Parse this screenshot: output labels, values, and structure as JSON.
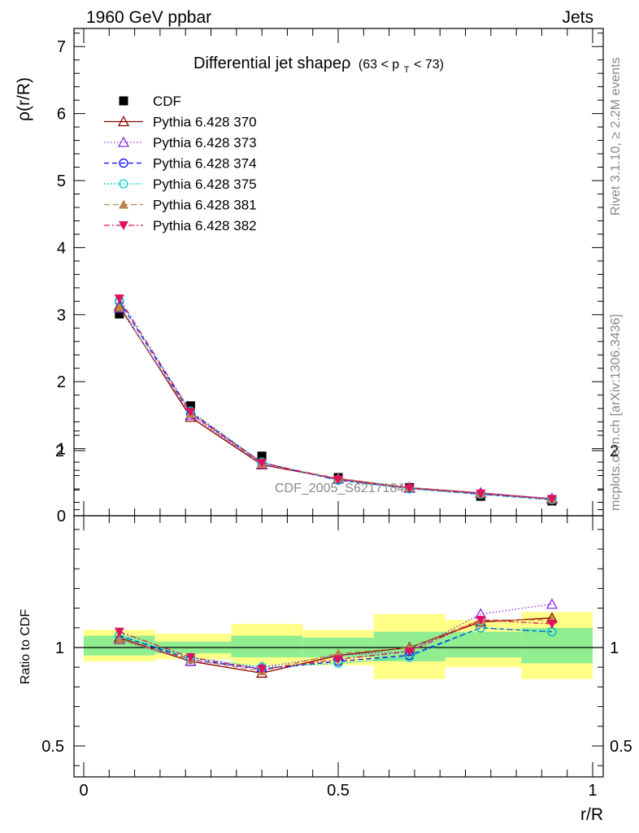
{
  "header": {
    "left": "1960 GeV ppbar",
    "right": "Jets"
  },
  "side_labels": {
    "rivet": "Rivet 3.1.10, ≥ 2.2M events",
    "mcplots": "mcplots.cern.ch [arXiv:1306.3436]"
  },
  "watermark": "CDF_2005_S6217184",
  "colors": {
    "CDF": "#000000",
    "370": "#8b0000",
    "373": "#8a2be2",
    "374": "#0000ff",
    "375": "#00cdcd",
    "381": "#b8864b",
    "382": "#e0115f",
    "band_stat": "#90ee90",
    "band_total": "#ffff88"
  },
  "chart_data": [
    {
      "type": "line",
      "title": "Differential jet shapeρ (63 < p_T < 73)",
      "title_main": "Differential jet shapeρ",
      "title_range_a": "(63 < p",
      "title_range_sub": "T",
      "title_range_b": " < 73)",
      "ylabel": "ρ(r/R)",
      "xlim": [
        0,
        1
      ],
      "ylim": [
        0,
        7.25
      ],
      "yticks": [
        "0",
        "1",
        "2",
        "3",
        "4",
        "5",
        "6",
        "7"
      ],
      "legend_position": "top-left",
      "x": [
        0.07,
        0.21,
        0.35,
        0.5,
        0.64,
        0.78,
        0.92
      ],
      "series": [
        {
          "name": "CDF",
          "key": "CDF",
          "marker": "square",
          "dash": "",
          "values": [
            3.01,
            1.64,
            0.89,
            0.57,
            0.42,
            0.29,
            0.22
          ]
        },
        {
          "name": "Pythia 6.428 370",
          "key": "370",
          "marker": "triangle-open",
          "dash": "",
          "values": [
            3.13,
            1.47,
            0.76,
            0.55,
            0.42,
            0.34,
            0.25
          ]
        },
        {
          "name": "Pythia 6.428 373",
          "key": "373",
          "marker": "triangle-open",
          "dash": "1.5,2.5",
          "values": [
            3.1,
            1.5,
            0.77,
            0.55,
            0.41,
            0.34,
            0.26
          ]
        },
        {
          "name": "Pythia 6.428 374",
          "key": "374",
          "marker": "circle-open",
          "dash": "6,4",
          "values": [
            3.2,
            1.53,
            0.79,
            0.53,
            0.41,
            0.32,
            0.24
          ]
        },
        {
          "name": "Pythia 6.428 375",
          "key": "375",
          "marker": "circle-open",
          "dash": "2,2",
          "values": [
            3.21,
            1.56,
            0.8,
            0.53,
            0.4,
            0.32,
            0.24
          ]
        },
        {
          "name": "Pythia 6.428 381",
          "key": "381",
          "marker": "triangle-filled",
          "dash": "7,4",
          "values": [
            3.11,
            1.52,
            0.77,
            0.56,
            0.42,
            0.33,
            0.25
          ]
        },
        {
          "name": "Pythia 6.428 382",
          "key": "382",
          "marker": "triangle-down-filled",
          "dash": "7,3,2,3",
          "values": [
            3.24,
            1.55,
            0.79,
            0.54,
            0.41,
            0.33,
            0.25
          ]
        }
      ]
    },
    {
      "type": "line",
      "ylabel": "Ratio to CDF",
      "xlabel": "r/R",
      "xlim": [
        0,
        1
      ],
      "ylim": [
        0.35,
        2.3
      ],
      "yticks": [
        {
          "value": 0.5,
          "label": "0.5"
        },
        {
          "value": 1,
          "label": "1"
        },
        {
          "value": 2,
          "label": "2"
        }
      ],
      "xticks": [
        {
          "value": 0,
          "label": "0"
        },
        {
          "value": 0.5,
          "label": "0.5"
        },
        {
          "value": 1,
          "label": "1"
        }
      ],
      "bands": [
        {
          "x0": 0.0,
          "x1": 0.14,
          "stat": [
            0.96,
            1.06
          ],
          "total": [
            0.93,
            1.09
          ]
        },
        {
          "x0": 0.14,
          "x1": 0.29,
          "stat": [
            0.97,
            1.03
          ],
          "total": [
            0.94,
            1.07
          ]
        },
        {
          "x0": 0.29,
          "x1": 0.43,
          "stat": [
            0.95,
            1.06
          ],
          "total": [
            0.91,
            1.12
          ]
        },
        {
          "x0": 0.43,
          "x1": 0.57,
          "stat": [
            0.95,
            1.05
          ],
          "total": [
            0.91,
            1.09
          ]
        },
        {
          "x0": 0.57,
          "x1": 0.71,
          "stat": [
            0.93,
            1.08
          ],
          "total": [
            0.84,
            1.17
          ]
        },
        {
          "x0": 0.71,
          "x1": 0.86,
          "stat": [
            0.95,
            1.08
          ],
          "total": [
            0.9,
            1.14
          ]
        },
        {
          "x0": 0.86,
          "x1": 1.0,
          "stat": [
            0.92,
            1.1
          ],
          "total": [
            0.84,
            1.18
          ]
        }
      ],
      "x": [
        0.07,
        0.21,
        0.35,
        0.5,
        0.64,
        0.78,
        0.92
      ],
      "series": [
        {
          "name": "Pythia 6.428 370",
          "key": "370",
          "marker": "triangle-open",
          "dash": "",
          "values": [
            1.05,
            0.93,
            0.87,
            0.96,
            1.0,
            1.13,
            1.15
          ]
        },
        {
          "name": "Pythia 6.428 373",
          "key": "373",
          "marker": "triangle-open",
          "dash": "1.5,2.5",
          "values": [
            1.04,
            0.93,
            0.9,
            0.96,
            0.98,
            1.17,
            1.22
          ]
        },
        {
          "name": "Pythia 6.428 374",
          "key": "374",
          "marker": "circle-open",
          "dash": "6,4",
          "values": [
            1.06,
            0.94,
            0.89,
            0.93,
            0.96,
            1.1,
            1.08
          ]
        },
        {
          "name": "Pythia 6.428 375",
          "key": "375",
          "marker": "circle-open",
          "dash": "2,2",
          "values": [
            1.06,
            0.95,
            0.9,
            0.92,
            0.95,
            1.1,
            1.08
          ]
        },
        {
          "name": "Pythia 6.428 381",
          "key": "381",
          "marker": "triangle-filled",
          "dash": "7,4",
          "values": [
            1.04,
            0.94,
            0.88,
            0.97,
            1.0,
            1.14,
            1.14
          ]
        },
        {
          "name": "Pythia 6.428 382",
          "key": "382",
          "marker": "triangle-down-filled",
          "dash": "7,3,2,3",
          "values": [
            1.08,
            0.95,
            0.89,
            0.94,
            0.98,
            1.14,
            1.12
          ]
        }
      ]
    }
  ]
}
